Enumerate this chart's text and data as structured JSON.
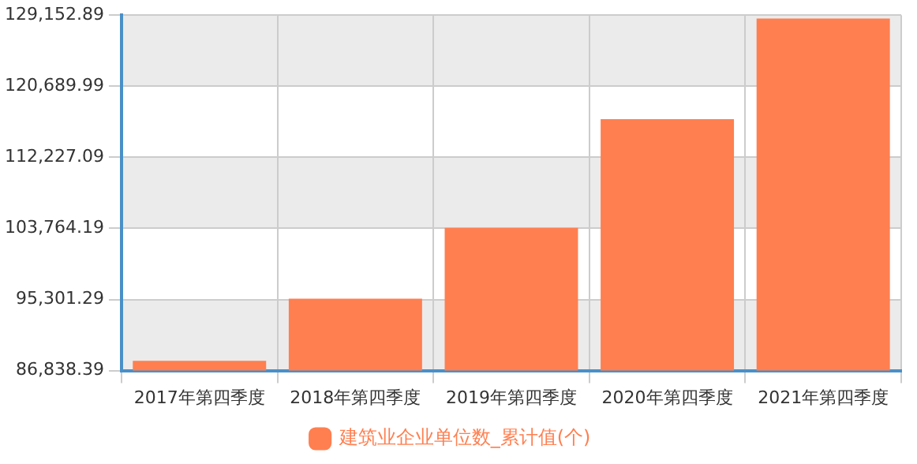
{
  "chart_data": {
    "type": "bar",
    "categories": [
      "2017年第四季度",
      "2018年第四季度",
      "2019年第四季度",
      "2020年第四季度",
      "2021年第四季度"
    ],
    "series": [
      {
        "name": "建筑业企业单位数_累计值(个)",
        "color": "#ff7f50",
        "values": [
          88000,
          95400,
          103840,
          116780,
          128760
        ]
      }
    ],
    "ylim": [
      86838.39,
      129152.89
    ],
    "yticks": [
      {
        "value": 86838.39,
        "label": "86,838.39"
      },
      {
        "value": 95301.29,
        "label": "95,301.29"
      },
      {
        "value": 103764.19,
        "label": "103,764.19"
      },
      {
        "value": 112227.09,
        "label": "112,227.09"
      },
      {
        "value": 120689.99,
        "label": "120,689.99"
      },
      {
        "value": 129152.89,
        "label": "129,152.89"
      }
    ],
    "grid": true,
    "legend": "bottom"
  }
}
